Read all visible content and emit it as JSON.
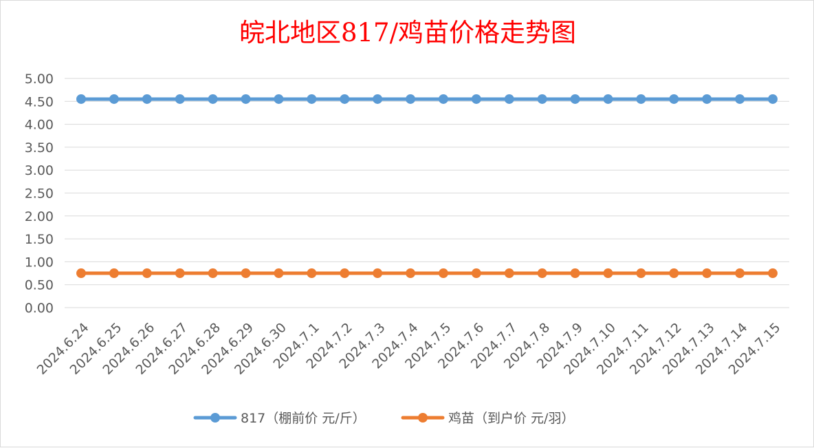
{
  "chart_data": {
    "type": "line",
    "title": "皖北地区817/鸡苗价格走势图",
    "xlabel": "",
    "ylabel": "",
    "ylim": [
      0,
      5
    ],
    "yticks": [
      "0.00",
      "0.50",
      "1.00",
      "1.50",
      "2.00",
      "2.50",
      "3.00",
      "3.50",
      "4.00",
      "4.50",
      "5.00"
    ],
    "grid": true,
    "legend_position": "bottom",
    "categories": [
      "2024.6.24",
      "2024.6.25",
      "2024.6.26",
      "2024.6.27",
      "2024.6.28",
      "2024.6.29",
      "2024.6.30",
      "2024.7.1",
      "2024.7.2",
      "2024.7.3",
      "2024.7.4",
      "2024.7.5",
      "2024.7.6",
      "2024.7.7",
      "2024.7.8",
      "2024.7.9",
      "2024.7.10",
      "2024.7.11",
      "2024.7.12",
      "2024.7.13",
      "2024.7.14",
      "2024.7.15"
    ],
    "series": [
      {
        "name": "817（棚前价 元/斤）",
        "color": "#5b9bd5",
        "values": [
          4.55,
          4.55,
          4.55,
          4.55,
          4.55,
          4.55,
          4.55,
          4.55,
          4.55,
          4.55,
          4.55,
          4.55,
          4.55,
          4.55,
          4.55,
          4.55,
          4.55,
          4.55,
          4.55,
          4.55,
          4.55,
          4.55
        ]
      },
      {
        "name": "鸡苗（到户价 元/羽）",
        "color": "#ed7d31",
        "values": [
          0.75,
          0.75,
          0.75,
          0.75,
          0.75,
          0.75,
          0.75,
          0.75,
          0.75,
          0.75,
          0.75,
          0.75,
          0.75,
          0.75,
          0.75,
          0.75,
          0.75,
          0.75,
          0.75,
          0.75,
          0.75,
          0.75
        ]
      }
    ]
  }
}
